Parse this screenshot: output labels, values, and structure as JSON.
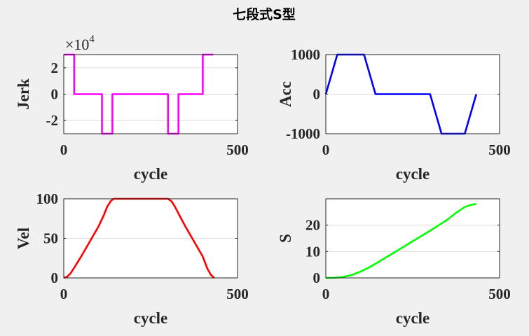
{
  "title": "七段式S型",
  "chart_data": [
    {
      "type": "line",
      "name_key": "jerk",
      "ylabel": "Jerk",
      "xlabel": "cycle",
      "xlim": [
        0,
        500
      ],
      "ylim": [
        -30000,
        30000
      ],
      "xticks": [
        0,
        500
      ],
      "yticks": [
        -2,
        0,
        2
      ],
      "ytick_scale": 10000,
      "y_exponent_base": "×10",
      "y_exponent_power": "4",
      "grid": true,
      "color": "#ff00ff",
      "x": [
        0,
        30,
        30,
        110,
        110,
        140,
        140,
        300,
        300,
        330,
        330,
        400,
        400,
        430
      ],
      "y": [
        30000,
        30000,
        0,
        0,
        -30000,
        -30000,
        0,
        0,
        -30000,
        -30000,
        0,
        0,
        30000,
        30000
      ]
    },
    {
      "type": "line",
      "name_key": "acc",
      "ylabel": "Acc",
      "xlabel": "cycle",
      "xlim": [
        0,
        500
      ],
      "ylim": [
        -1000,
        1000
      ],
      "xticks": [
        0,
        500
      ],
      "yticks": [
        -1000,
        0,
        1000
      ],
      "grid": true,
      "color": "#0000ff",
      "x": [
        0,
        33,
        110,
        143,
        300,
        333,
        400,
        433
      ],
      "y": [
        0,
        1000,
        1000,
        0,
        0,
        -1000,
        -1000,
        0
      ]
    },
    {
      "type": "line",
      "name_key": "vel",
      "ylabel": "Vel",
      "xlabel": "cycle",
      "xlim": [
        0,
        500
      ],
      "ylim": [
        0,
        100
      ],
      "xticks": [
        0,
        500
      ],
      "yticks": [
        0,
        50,
        100
      ],
      "grid": true,
      "color": "#ff0000",
      "x": [
        0,
        10,
        20,
        33,
        50,
        75,
        100,
        115,
        125,
        135,
        143,
        300,
        310,
        320,
        333,
        350,
        375,
        400,
        413,
        423,
        433
      ],
      "y": [
        0,
        1.5,
        6,
        15,
        27,
        46,
        65,
        79,
        90,
        97,
        100,
        100,
        97,
        90,
        79,
        65,
        46,
        27,
        12,
        4,
        0
      ]
    },
    {
      "type": "line",
      "name_key": "s",
      "ylabel": "S",
      "xlabel": "cycle",
      "xlim": [
        0,
        500
      ],
      "ylim": [
        0,
        30
      ],
      "xticks": [
        0,
        500
      ],
      "yticks": [
        0,
        10,
        20
      ],
      "grid": true,
      "color": "#00ff00",
      "x": [
        0,
        25,
        50,
        75,
        100,
        125,
        150,
        200,
        250,
        300,
        325,
        350,
        375,
        400,
        420,
        433
      ],
      "y": [
        0,
        0.05,
        0.35,
        1.1,
        2.4,
        4.0,
        5.9,
        9.9,
        13.9,
        17.9,
        20.0,
        22.1,
        24.7,
        26.9,
        27.8,
        28.0
      ]
    }
  ]
}
